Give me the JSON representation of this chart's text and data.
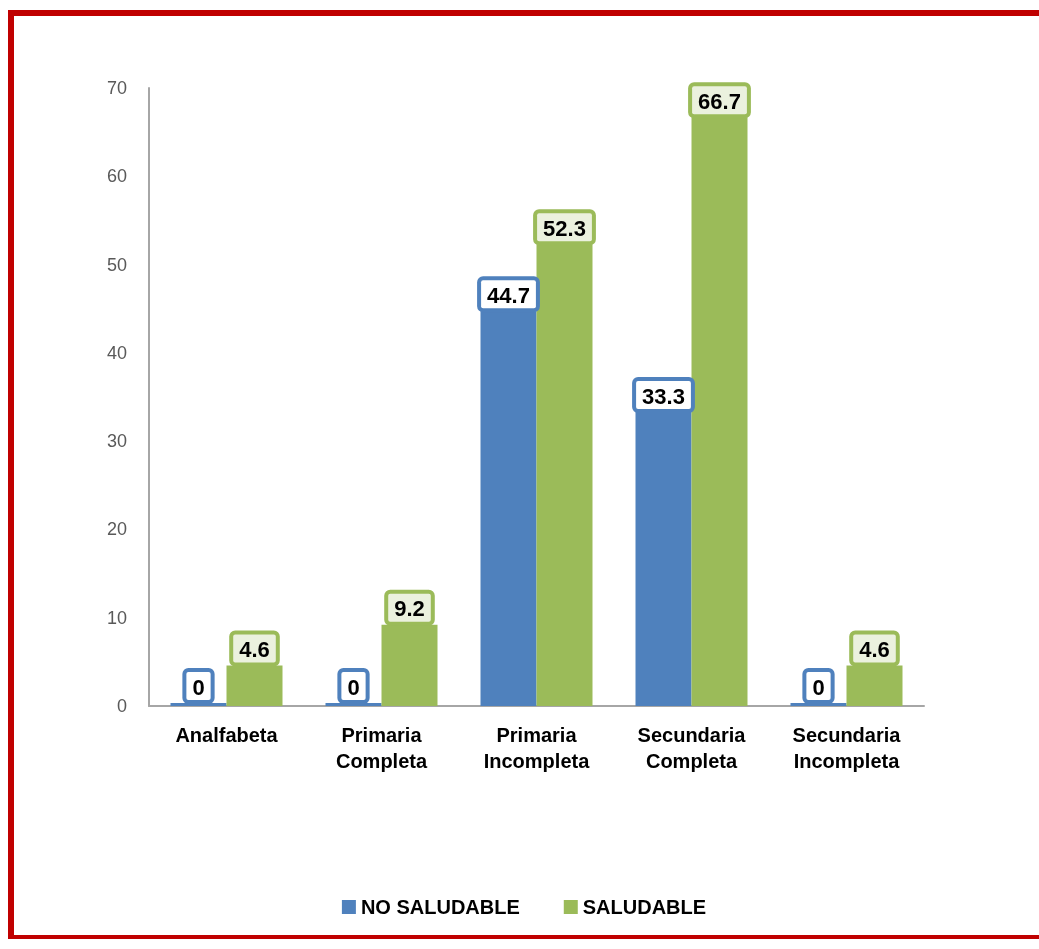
{
  "chart_data": {
    "type": "bar",
    "categories": [
      "Analfabeta",
      "Primaria\nCompleta",
      "Primaria\nIncompleta",
      "Secundaria\nCompleta",
      "Secundaria\nIncompleta"
    ],
    "series": [
      {
        "name": "NO SALUDABLE",
        "color": "#4f81bd",
        "values": [
          0,
          0,
          44.7,
          33.3,
          0
        ]
      },
      {
        "name": "SALUDABLE",
        "color": "#9bbb59",
        "values": [
          4.6,
          9.2,
          52.3,
          66.7,
          4.6
        ]
      }
    ],
    "ylim": [
      0,
      70
    ],
    "yticks": [
      0,
      10,
      20,
      30,
      40,
      50,
      60,
      70
    ],
    "grid": false,
    "legend": "bottom",
    "data_labels": true
  }
}
